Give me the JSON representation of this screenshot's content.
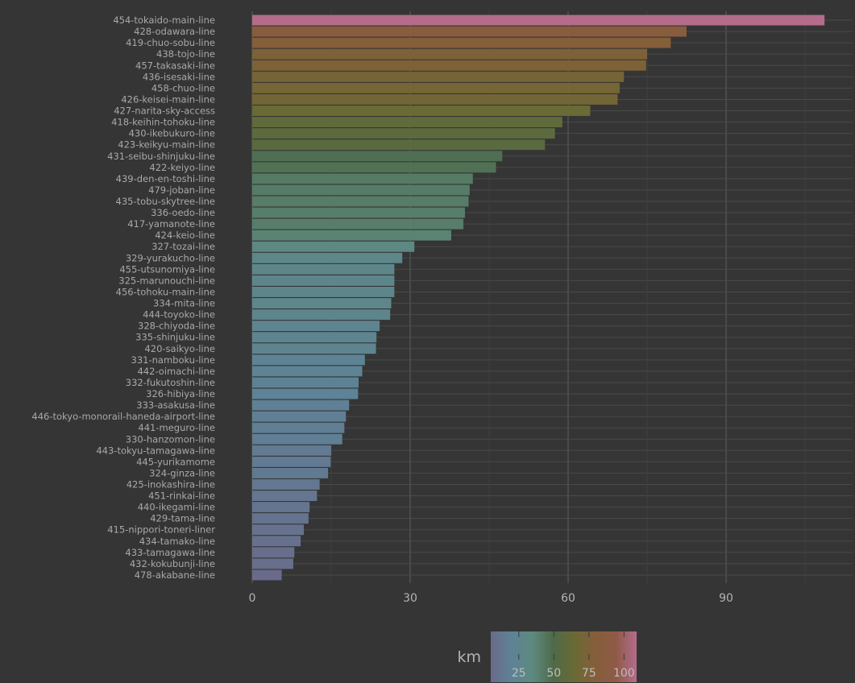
{
  "chart_data": {
    "type": "bar",
    "orientation": "horizontal",
    "title": "",
    "xlabel": "",
    "ylabel": "",
    "xlim": [
      0,
      113
    ],
    "x_ticks": [
      0,
      30,
      60,
      90
    ],
    "grid": true,
    "legend": {
      "title": "km",
      "position": "bottom",
      "type": "colorbar",
      "range": [
        5,
        109
      ],
      "ticks": [
        25,
        50,
        75,
        100
      ]
    },
    "colors": {
      "background": "#353535",
      "gridline": "#4a4a4a",
      "scale": [
        "#6a6a8a",
        "#5e8296",
        "#5d8a7e",
        "#4e6a4a",
        "#6a6a34",
        "#855e3a",
        "#8e5a46",
        "#b56c8c"
      ]
    },
    "categories": [
      "454-tokaido-main-line",
      "428-odawara-line",
      "419-chuo-sobu-line",
      "438-tojo-line",
      "457-takasaki-line",
      "436-isesaki-line",
      "458-chuo-line",
      "426-keisei-main-line",
      "427-narita-sky-access",
      "418-keihin-tohoku-line",
      "430-ikebukuro-line",
      "423-keikyu-main-line",
      "431-seibu-shinjuku-line",
      "422-keiyo-line",
      "439-den-en-toshi-line",
      "479-joban-line",
      "435-tobu-skytree-line",
      "336-oedo-line",
      "417-yamanote-line",
      "424-keio-line",
      "327-tozai-line",
      "329-yurakucho-line",
      "455-utsunomiya-line",
      "325-marunouchi-line",
      "456-tohoku-main-line",
      "334-mita-line",
      "444-toyoko-line",
      "328-chiyoda-line",
      "335-shinjuku-line",
      "420-saikyo-line",
      "331-namboku-line",
      "442-oimachi-line",
      "332-fukutoshin-line",
      "326-hibiya-line",
      "333-asakusa-line",
      "446-tokyo-monorail-haneda-airport-line",
      "441-meguro-line",
      "330-hanzomon-line",
      "443-tokyu-tamagawa-line",
      "445-yurikamome",
      "324-ginza-line",
      "425-inokashira-line",
      "451-rinkai-line",
      "440-ikegami-line",
      "429-tama-line",
      "415-nippori-toneri-liner",
      "434-tamako-line",
      "433-tamagawa-line",
      "432-kokubunji-line",
      "478-akabane-line"
    ],
    "values": [
      108.7,
      82.5,
      79.5,
      75.0,
      74.8,
      70.6,
      69.8,
      69.4,
      64.2,
      58.9,
      57.5,
      55.6,
      47.5,
      46.3,
      41.9,
      41.3,
      41.1,
      40.4,
      40.1,
      37.8,
      30.8,
      28.5,
      27.0,
      27.0,
      27.0,
      26.4,
      26.2,
      24.2,
      23.6,
      23.5,
      21.4,
      20.9,
      20.2,
      20.1,
      18.4,
      17.8,
      17.5,
      17.1,
      15.0,
      14.9,
      14.4,
      12.8,
      12.3,
      10.9,
      10.7,
      9.8,
      9.2,
      8.0,
      7.8,
      5.6
    ]
  }
}
